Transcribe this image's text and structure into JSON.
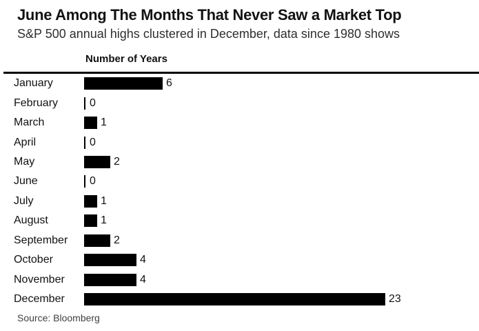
{
  "header": {
    "title": "June Among The Months That Never Saw a Market Top",
    "subtitle": "S&P 500 annual highs clustered in December, data since 1980 shows"
  },
  "chart_data": {
    "type": "bar",
    "orientation": "horizontal",
    "title": "June Among The Months That Never Saw a Market Top",
    "subtitle": "S&P 500 annual highs clustered in December, data since 1980 shows",
    "value_axis_title": "Number of Years",
    "categories": [
      "January",
      "February",
      "March",
      "April",
      "May",
      "June",
      "July",
      "August",
      "September",
      "October",
      "November",
      "December"
    ],
    "values": [
      6,
      0,
      1,
      0,
      2,
      0,
      1,
      1,
      2,
      4,
      4,
      23
    ],
    "value_labels_shown": true,
    "grid": false,
    "legend": "none",
    "bar_color": "#000000",
    "background_color": "#ffffff",
    "value_range": [
      0,
      23
    ]
  },
  "footer": {
    "source": "Source: Bloomberg"
  }
}
